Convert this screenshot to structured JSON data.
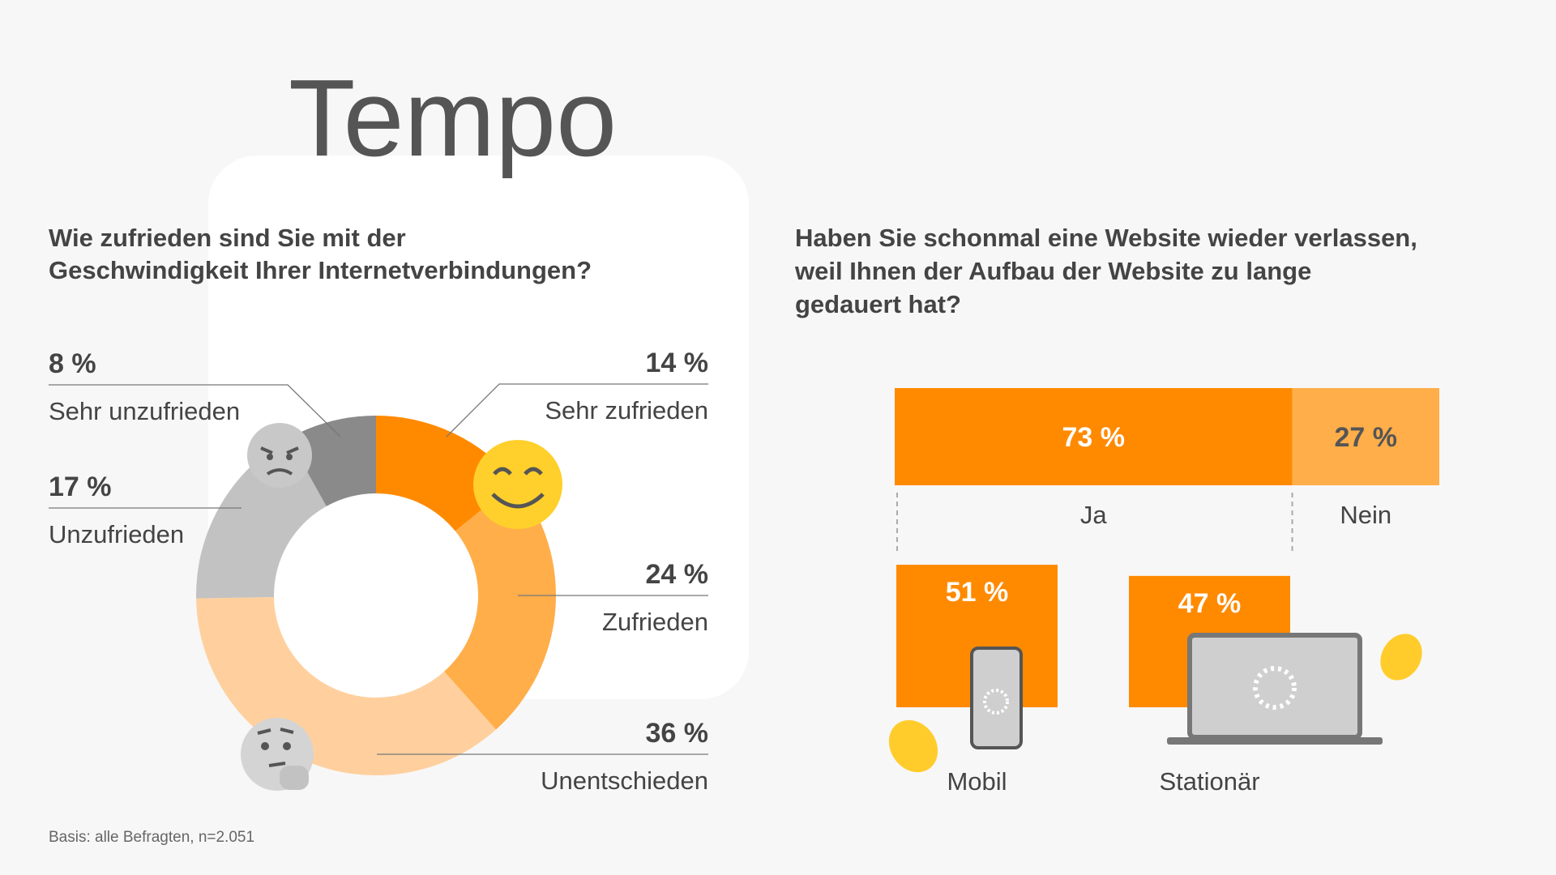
{
  "title": "Tempo",
  "footnote": "Basis: alle Befragten, n=2.051",
  "chart_data": [
    {
      "type": "pie",
      "donut": true,
      "title": "Wie zufrieden sind Sie mit der Geschwindigkeit Ihrer Internetverbindungen?",
      "categories": [
        "Sehr zufrieden",
        "Zufrieden",
        "Unentschieden",
        "Unzufrieden",
        "Sehr unzufrieden"
      ],
      "values": [
        14,
        24,
        36,
        17,
        8
      ],
      "value_labels": [
        "14 %",
        "24 %",
        "36 %",
        "17 %",
        "8 %"
      ],
      "colors": [
        "#ff8a00",
        "#ffae4a",
        "#ffd09e",
        "#c2c2c2",
        "#8a8a8a"
      ]
    },
    {
      "type": "bar",
      "orientation": "horizontal",
      "stacked": true,
      "title": "Haben Sie schonmal eine Website wieder verlassen, weil Ihnen der Aufbau der Website zu lange gedauert hat?",
      "series": [
        {
          "name": "Ja",
          "color": "#ff8a00",
          "values": [
            73
          ],
          "value_labels": [
            "73 %"
          ]
        },
        {
          "name": "Nein",
          "color": "#ffae4a",
          "values": [
            27
          ],
          "value_labels": [
            "27 %"
          ]
        }
      ],
      "xlim": [
        0,
        100
      ]
    },
    {
      "type": "bar",
      "categories": [
        "Mobil",
        "Stationär"
      ],
      "values": [
        51,
        47
      ],
      "value_labels": [
        "51 %",
        "47 %"
      ],
      "color": "#ff8a00",
      "ylim": [
        0,
        100
      ]
    }
  ]
}
